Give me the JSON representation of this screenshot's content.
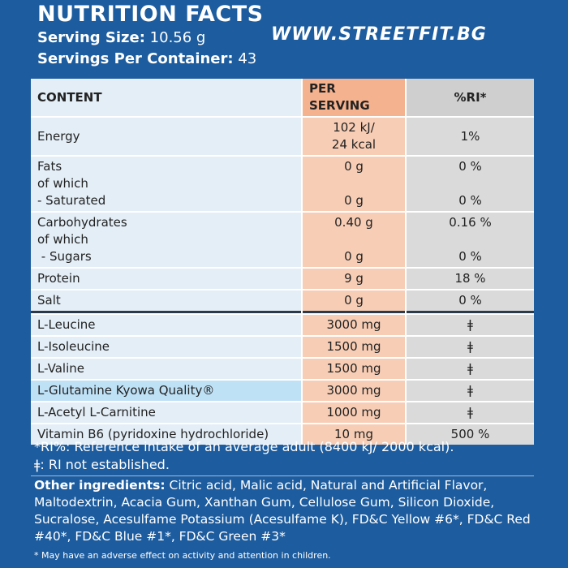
{
  "header": {
    "title": "NUTRITION FACTS",
    "serving_size_label": "Serving Size:",
    "serving_size_value": "10.56 g",
    "servings_label": "Servings Per Container:",
    "servings_value": "43",
    "website": "WWW.STREETFIT.BG"
  },
  "table": {
    "columns": [
      "CONTENT",
      "PER SERVING",
      "%RI*"
    ],
    "rows": [
      {
        "content": [
          "Energy"
        ],
        "per_serving": [
          "102 kJ/",
          "24 kcal"
        ],
        "ri": [
          "1%"
        ]
      },
      {
        "content": [
          "Fats",
          "of which",
          "- Saturated"
        ],
        "per_serving": [
          "0 g",
          "0 g"
        ],
        "ri": [
          "0 %",
          "0 %"
        ]
      },
      {
        "content": [
          "Carbohydrates",
          "of which",
          " - Sugars"
        ],
        "per_serving": [
          "0.40 g",
          "0 g"
        ],
        "ri": [
          "0.16 %",
          "0 %"
        ]
      },
      {
        "content": [
          "Protein"
        ],
        "per_serving": [
          "9 g"
        ],
        "ri": [
          "18 %"
        ]
      },
      {
        "content": [
          "Salt"
        ],
        "per_serving": [
          "0 g"
        ],
        "ri": [
          "0 %"
        ]
      },
      {
        "content": [
          "L-Leucine"
        ],
        "per_serving": [
          "3000 mg"
        ],
        "ri": [
          "ǂ"
        ]
      },
      {
        "content": [
          "L-Isoleucine"
        ],
        "per_serving": [
          "1500 mg"
        ],
        "ri": [
          "ǂ"
        ]
      },
      {
        "content": [
          "L-Valine"
        ],
        "per_serving": [
          "1500 mg"
        ],
        "ri": [
          "ǂ"
        ]
      },
      {
        "content": [
          "L-Glutamine Kyowa Quality®"
        ],
        "per_serving": [
          "3000 mg"
        ],
        "ri": [
          "ǂ"
        ]
      },
      {
        "content": [
          "L-Acetyl L-Carnitine"
        ],
        "per_serving": [
          "1000 mg"
        ],
        "ri": [
          "ǂ"
        ]
      },
      {
        "content": [
          "Vitamin B6 (pyridoxine hydrochloride)"
        ],
        "per_serving": [
          "10 mg"
        ],
        "ri": [
          "500 %"
        ]
      }
    ]
  },
  "footnotes": [
    "*RI%: Reference intake of an average adult (8400 kJ/ 2000 kcal).",
    "ǂ: RI not established."
  ],
  "other_ingredients": {
    "label": "Other ingredients:",
    "text": "Citric acid, Malic acid, Natural and Artificial Flavor, Maltodextrin, Acacia Gum, Xanthan Gum, Cellulose Gum, Silicon Dioxide, Sucralose, Acesulfame Potassium (Acesulfame K), FD&C Yellow #6*, FD&C Red #40*, FD&C Blue #1*, FD&C Green #3*"
  },
  "disclaimer": "* May have an adverse effect on activity and attention in children."
}
